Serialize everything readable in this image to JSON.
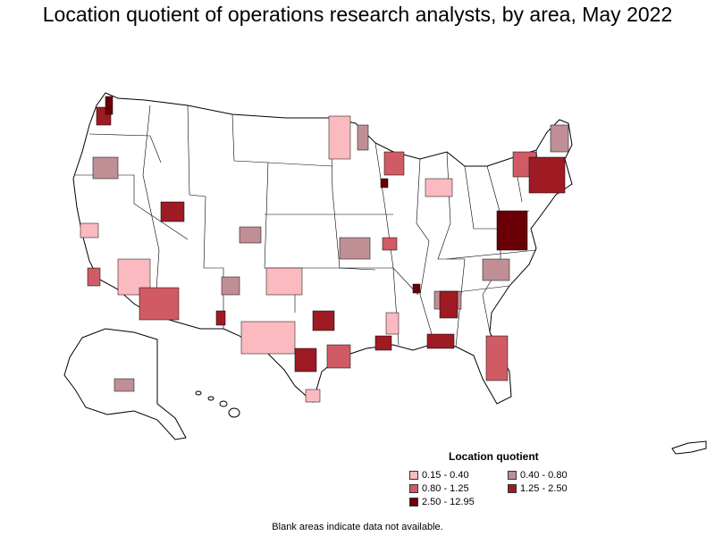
{
  "title": "Location quotient of operations research analysts, by area, May 2022",
  "legend": {
    "title": "Location quotient",
    "items": [
      {
        "label": "0.15 - 0.40",
        "color": "#fbb9c0"
      },
      {
        "label": "0.40 - 0.80",
        "color": "#c08f96"
      },
      {
        "label": "0.80 - 1.25",
        "color": "#d05b64"
      },
      {
        "label": "1.25 - 2.50",
        "color": "#9e1b24"
      },
      {
        "label": "2.50 - 12.95",
        "color": "#6a0006"
      }
    ]
  },
  "footnote": "Blank areas indicate data not available."
}
